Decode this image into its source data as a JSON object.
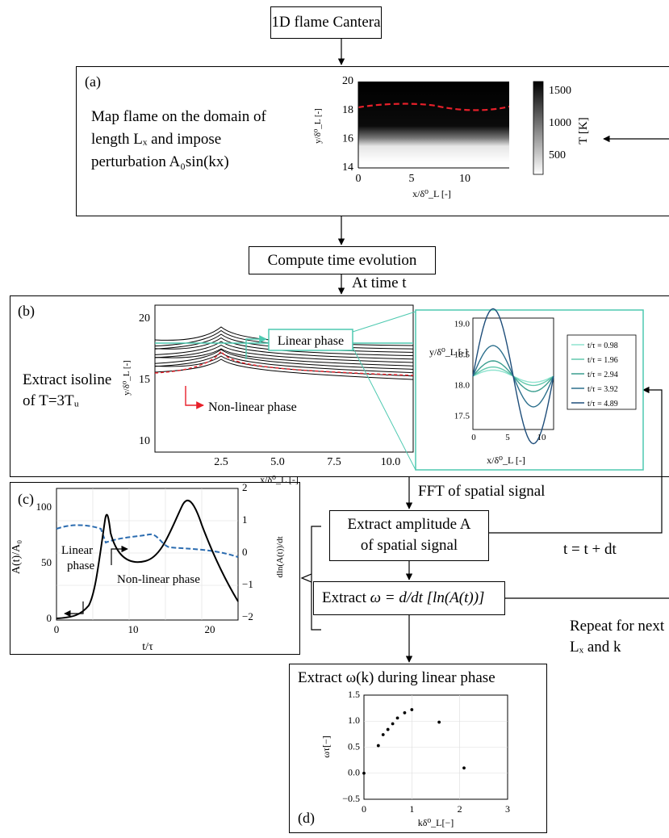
{
  "flow": {
    "start": "1D flame Cantera",
    "compute": "Compute time evolution",
    "at_time": "At time t",
    "fft": "FFT of spatial signal",
    "extract_amp_l1": "Extract amplitude A",
    "extract_amp_l2": "of spatial signal",
    "extract_omega_prefix": "Extract ",
    "extract_omega_math": "ω = d/dt [ln(A(t))]",
    "t_update": "t = t + dt",
    "repeat_l1": "Repeat for next",
    "repeat_l2": "Lₓ and k",
    "extract_disp": "Extract ω(k) during linear phase"
  },
  "panel_a": {
    "tag": "(a)",
    "text_l1": "Map flame on the domain of",
    "text_l2": "length Lₓ and impose",
    "text_l3": "perturbation A₀sin(kx)",
    "ylabel": "y/δ⁰_L [-]",
    "xlabel": "x/δ⁰_L [-]",
    "xticks": [
      "0",
      "5",
      "10"
    ],
    "yticks": [
      "20",
      "18",
      "16",
      "14"
    ],
    "cbar_ticks": [
      "1500",
      "1000",
      "500"
    ],
    "cbar_label": "T [K]",
    "colors": {
      "isoline": "#e8202a"
    }
  },
  "panel_b": {
    "tag": "(b)",
    "text_l1": "Extract isoline",
    "text_l2": "of T=3Tᵤ",
    "linear": "Linear phase",
    "nonlinear": "Non-linear phase",
    "ylabel": "y/δ⁰_L [-]",
    "xlabel": "x/δ⁰_L [-]",
    "xticks": [
      "2.5",
      "5.0",
      "7.5",
      "10.0"
    ],
    "yticks": [
      "20",
      "15",
      "10"
    ],
    "inset": {
      "ylabel": "y/δ⁰_L [-]",
      "xlabel": "x/δ⁰_L [-]",
      "yticks": [
        "19.0",
        "18.5",
        "18.0",
        "17.5"
      ],
      "xticks": [
        "0",
        "5",
        "10"
      ],
      "legend": [
        "t/τ = 0.98",
        "t/τ = 1.96",
        "t/τ = 2.94",
        "t/τ = 3.92",
        "t/τ = 4.89"
      ],
      "colors": [
        "#8fe3cf",
        "#62c9ad",
        "#3b9e8f",
        "#2c6f8c",
        "#1f4e7a"
      ]
    },
    "colors": {
      "accent": "#4ec9b0",
      "arrow": "#e8202a"
    }
  },
  "panel_c": {
    "tag": "(c)",
    "ylabel_left": "A(t)/A₀",
    "ylabel_right": "dln(A(t))/dt",
    "xlabel": "t/τ",
    "xticks": [
      "0",
      "10",
      "20"
    ],
    "yticks_left": [
      "100",
      "50",
      "0"
    ],
    "yticks_right": [
      "2",
      "1",
      "0",
      "−1",
      "−2"
    ],
    "linear_l1": "Linear",
    "linear_l2": "phase",
    "nonlinear": "Non-linear phase",
    "colors": {
      "amp": "#000000",
      "rate": "#2b6cb0"
    }
  },
  "chart_data": {
    "type": "scatter",
    "xlabel": "kδ⁰_L[−]",
    "ylabel": "ωτ[−]",
    "xlim": [
      0,
      3
    ],
    "ylim": [
      -0.5,
      1.5
    ],
    "xticks": [
      "0",
      "1",
      "2",
      "3"
    ],
    "yticks": [
      "1.5",
      "1.0",
      "0.5",
      "0.0",
      "−0.5"
    ],
    "grid": true,
    "x": [
      0.0,
      0.3,
      0.4,
      0.5,
      0.6,
      0.7,
      0.85,
      1.0,
      1.57,
      2.09
    ],
    "y": [
      0.0,
      0.53,
      0.74,
      0.84,
      0.95,
      1.06,
      1.16,
      1.22,
      0.98,
      0.1
    ],
    "tag": "(d)"
  }
}
